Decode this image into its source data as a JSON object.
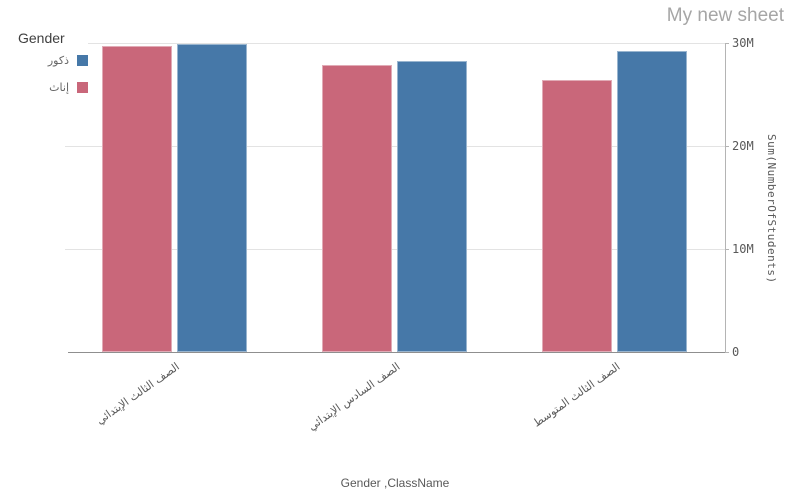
{
  "sheet": {
    "title": "My new sheet"
  },
  "legend": {
    "title": "Gender",
    "items": [
      {
        "key": "males",
        "label": "ذكور",
        "color": "#4678a8"
      },
      {
        "key": "females",
        "label": "إناث",
        "color": "#c9677a"
      }
    ]
  },
  "chart_data": {
    "type": "bar",
    "title": "",
    "xlabel": "Gender ,ClassName",
    "ylabel": "Sum(NumberOfStudents)",
    "categories": [
      "الصف الثالث الإبتدائي",
      "الصف السادس الإبتدائي",
      "الصف الثالث المتوسط"
    ],
    "series": [
      {
        "key": "females",
        "name": "إناث",
        "color": "#c9677a",
        "values": [
          29.7,
          27.9,
          26.4
        ]
      },
      {
        "key": "males",
        "name": "ذكور",
        "color": "#4678a8",
        "values": [
          29.9,
          28.3,
          29.2
        ]
      }
    ],
    "values_unit": "M (millions of students)",
    "ylim": [
      0,
      30
    ],
    "yticks": [
      {
        "value": 30,
        "label": "30M"
      },
      {
        "value": 20,
        "label": "20M"
      },
      {
        "value": 10,
        "label": "10M"
      },
      {
        "value": 0,
        "label": "0"
      }
    ],
    "grid": true,
    "legend_position": "top-left",
    "bar_orientation": "vertical"
  }
}
